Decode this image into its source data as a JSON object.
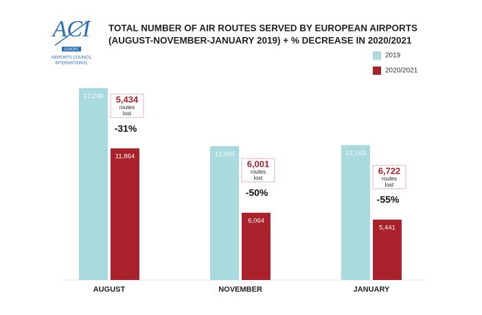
{
  "logo": {
    "mark": "ACI",
    "region": "EUROPE",
    "name_line1": "AIRPORTS COUNCIL",
    "name_line2": "INTERNATIONAL"
  },
  "chart_data": {
    "type": "bar",
    "title": [
      "TOTAL NUMBER OF AIR ROUTES SERVED BY EUROPEAN AIRPORTS",
      "(AUGUST-NOVEMBER-JANUARY 2019) + % DECREASE IN 2020/2021"
    ],
    "categories": [
      "AUGUST",
      "NOVEMBER",
      "JANUARY"
    ],
    "series": [
      {
        "name": "2019",
        "color": "#a9dadd",
        "values": [
          17298,
          12065,
          12163
        ],
        "value_labels": [
          "17,298",
          "12,065",
          "12,163"
        ]
      },
      {
        "name": "2020/2021",
        "color": "#a8212b",
        "values": [
          11864,
          6064,
          5441
        ],
        "value_labels": [
          "11,864",
          "6,064",
          "5,441"
        ]
      }
    ],
    "annotations": [
      {
        "routes_lost": "5,434",
        "text": "routes lost",
        "change": "-31%"
      },
      {
        "routes_lost": "6,001",
        "text": "routes lost",
        "change": "-50%"
      },
      {
        "routes_lost": "6,722",
        "text": "routes lost",
        "change": "-55%"
      }
    ],
    "ylim": [
      0,
      18000
    ]
  }
}
